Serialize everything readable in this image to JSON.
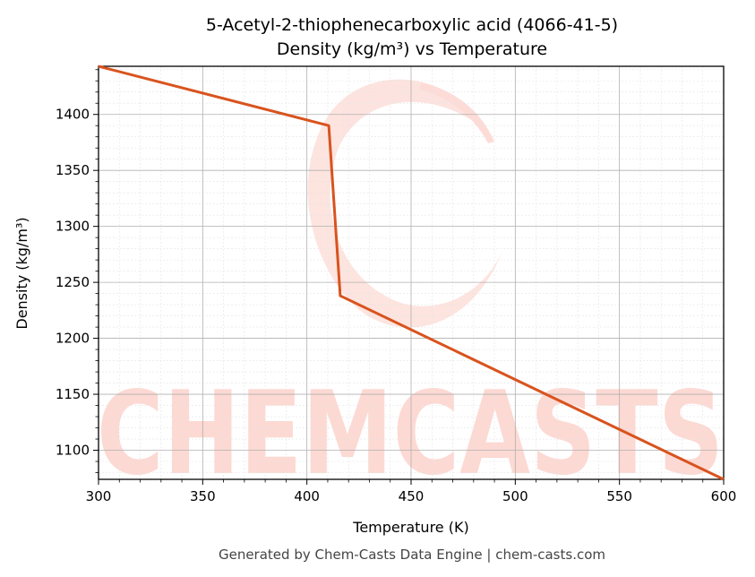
{
  "chart_data": {
    "type": "line",
    "title": "5-Acetyl-2-thiophenecarboxylic acid (4066-41-5)",
    "subtitle": "Density (kg/m³) vs Temperature",
    "xlabel": "Temperature (K)",
    "ylabel": "Density (kg/m³)",
    "xlim": [
      300,
      600
    ],
    "ylim": [
      1074,
      1443
    ],
    "xticks": [
      300,
      350,
      400,
      450,
      500,
      550,
      600
    ],
    "yticks": [
      1100,
      1150,
      1200,
      1250,
      1300,
      1350,
      1400
    ],
    "grid": true,
    "series": [
      {
        "color": "#d9531e",
        "x": [
          300,
          410.5,
          416,
          600
        ],
        "y": [
          1443,
          1390,
          1238,
          1074
        ]
      }
    ]
  },
  "watermark": "CHEMCASTS",
  "footer": "Generated by Chem-Casts Data Engine | chem-casts.com",
  "colors": {
    "line": "#d9531e",
    "watermark": "#fdd9d3"
  }
}
